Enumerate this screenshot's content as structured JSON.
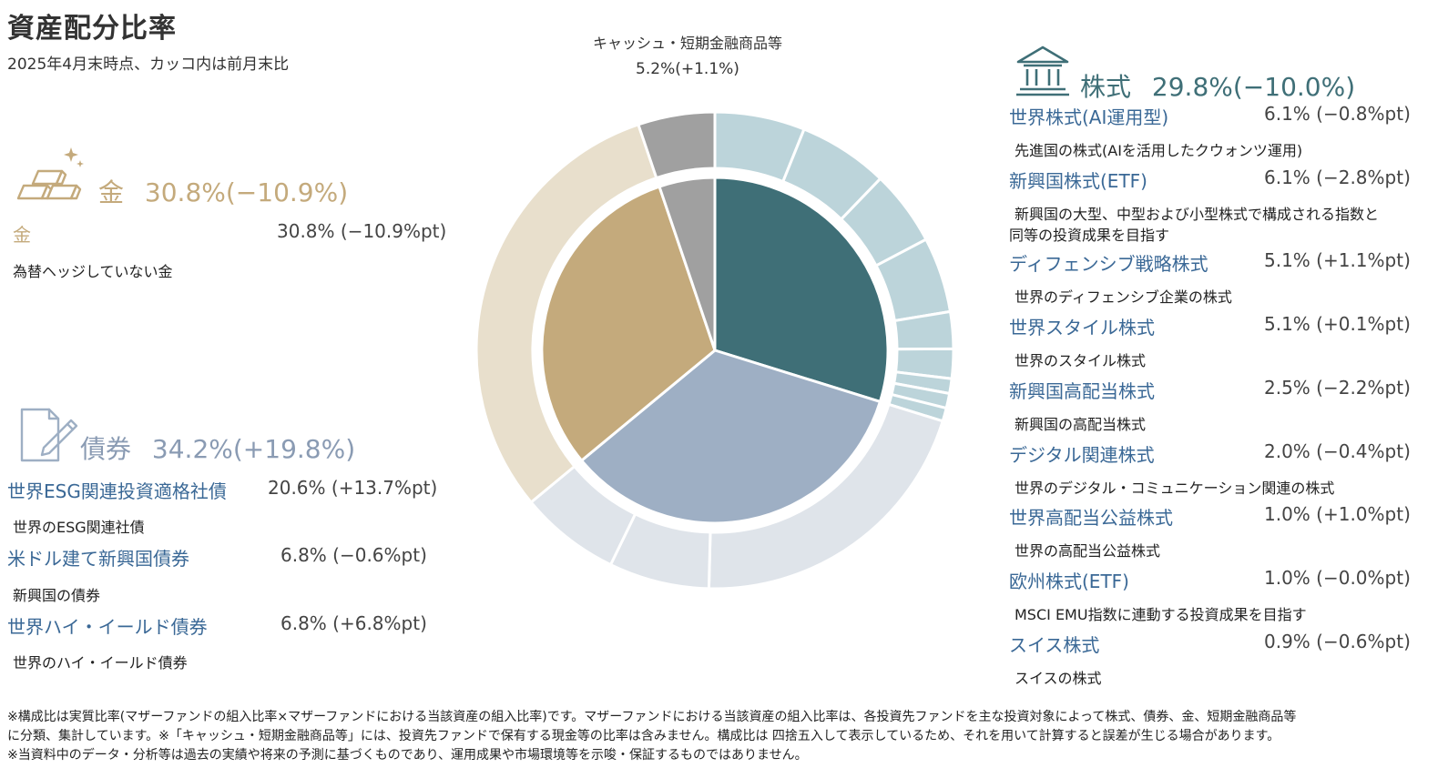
{
  "header": {
    "title": "資産配分比率",
    "subtitle": "2025年4月末時点、カッコ内は前月末比"
  },
  "colors": {
    "gold": "#c4aa7c",
    "gold_light": "#e8dfcc",
    "bond": "#9eafc4",
    "bond_light": "#dfe4ea",
    "equity": "#3f6f77",
    "equity_light": "#bcd4da",
    "cash": "#a0a0a0",
    "link_blue": "#3a6896"
  },
  "gold_group": {
    "icon": "gold-bars-icon",
    "heading_name": "金",
    "heading_value": "30.8%(−10.9%)",
    "items": [
      {
        "name": "金",
        "value": "30.8% (−10.9%pt)",
        "desc": "為替ヘッジしていない金"
      }
    ]
  },
  "bond_group": {
    "icon": "document-pen-icon",
    "heading_name": "債券",
    "heading_value": "34.2%(+19.8%)",
    "items": [
      {
        "name": "世界ESG関連投資適格社債",
        "value": "20.6% (+13.7%pt)",
        "desc": "世界のESG関連社債"
      },
      {
        "name": "米ドル建て新興国債券",
        "value": "6.8% (−0.6%pt)",
        "desc": "新興国の債券"
      },
      {
        "name": "世界ハイ・イールド債券",
        "value": "6.8% (+6.8%pt)",
        "desc": "世界のハイ・イールド債券"
      }
    ]
  },
  "equity_group": {
    "icon": "bank-building-icon",
    "heading_name": "株式",
    "heading_value": "29.8%(−10.0%)",
    "items": [
      {
        "name": "世界株式(AI運用型)",
        "value": "6.1% (−0.8%pt)",
        "desc": "先進国の株式(AIを活用したクウォンツ運用)"
      },
      {
        "name": "新興国株式(ETF)",
        "value": "6.1% (−2.8%pt)",
        "desc": "新興国の大型、中型および小型株式で構成される指数と",
        "desc2": "同等の投資成果を目指す"
      },
      {
        "name": "ディフェンシブ戦略株式",
        "value": "5.1% (+1.1%pt)",
        "desc": "世界のディフェンシブ企業の株式"
      },
      {
        "name": "世界スタイル株式",
        "value": "5.1% (+0.1%pt)",
        "desc": "世界のスタイル株式"
      },
      {
        "name": "新興国高配当株式",
        "value": "2.5% (−2.2%pt)",
        "desc": "新興国の高配当株式"
      },
      {
        "name": "デジタル関連株式",
        "value": "2.0% (−0.4%pt)",
        "desc": "世界のデジタル・コミュニケーション関連の株式"
      },
      {
        "name": "世界高配当公益株式",
        "value": "1.0% (+1.0%pt)",
        "desc": "世界の高配当公益株式"
      },
      {
        "name": "欧州株式(ETF)",
        "value": "1.0% (−0.0%pt)",
        "desc": "MSCI EMU指数に連動する投資成果を目指す"
      },
      {
        "name": "スイス株式",
        "value": "0.9% (−0.6%pt)",
        "desc": "スイスの株式"
      }
    ]
  },
  "cash": {
    "label": "キャッシュ・短期金融商品等",
    "value": "5.2%(+1.1%)"
  },
  "footnotes": [
    "※構成比は実質比率(マザーファンドの組入比率×マザーファンドにおける当該資産の組入比率)です。マザーファンドにおける当該資産の組入比率は、各投資先ファンドを主な投資対象によって株式、債券、金、短期金融商品等",
    "に分類、集計しています。※「キャッシュ・短期金融商品等」には、投資先ファンドで保有する現金等の比率は含みません。構成比は 四捨五入して表示しているため、それを用いて計算すると誤差が生じる場合があります。",
    "※当資料中のデータ・分析等は過去の実績や将来の予測に基づくものであり、運用成果や市場環境等を示唆・保証するものではありません。"
  ],
  "chart_data": {
    "type": "pie",
    "title": "資産配分比率",
    "inner": [
      {
        "name": "株式",
        "value": 29.8
      },
      {
        "name": "債券",
        "value": 34.2
      },
      {
        "name": "金",
        "value": 30.8
      },
      {
        "name": "キャッシュ・短期金融商品等",
        "value": 5.2
      }
    ],
    "outer": [
      {
        "group": "株式",
        "name": "世界株式(AI運用型)",
        "value": 6.1
      },
      {
        "group": "株式",
        "name": "新興国株式(ETF)",
        "value": 6.1
      },
      {
        "group": "株式",
        "name": "ディフェンシブ戦略株式",
        "value": 5.1
      },
      {
        "group": "株式",
        "name": "世界スタイル株式",
        "value": 5.1
      },
      {
        "group": "株式",
        "name": "新興国高配当株式",
        "value": 2.5
      },
      {
        "group": "株式",
        "name": "デジタル関連株式",
        "value": 2.0
      },
      {
        "group": "株式",
        "name": "世界高配当公益株式",
        "value": 1.0
      },
      {
        "group": "株式",
        "name": "欧州株式(ETF)",
        "value": 1.0
      },
      {
        "group": "株式",
        "name": "スイス株式",
        "value": 0.9
      },
      {
        "group": "債券",
        "name": "世界ESG関連投資適格社債",
        "value": 20.6
      },
      {
        "group": "債券",
        "name": "米ドル建て新興国債券",
        "value": 6.8
      },
      {
        "group": "債券",
        "name": "世界ハイ・イールド債券",
        "value": 6.8
      },
      {
        "group": "金",
        "name": "金",
        "value": 30.8
      },
      {
        "group": "キャッシュ・短期金融商品等",
        "name": "キャッシュ・短期金融商品等",
        "value": 5.2
      }
    ]
  }
}
